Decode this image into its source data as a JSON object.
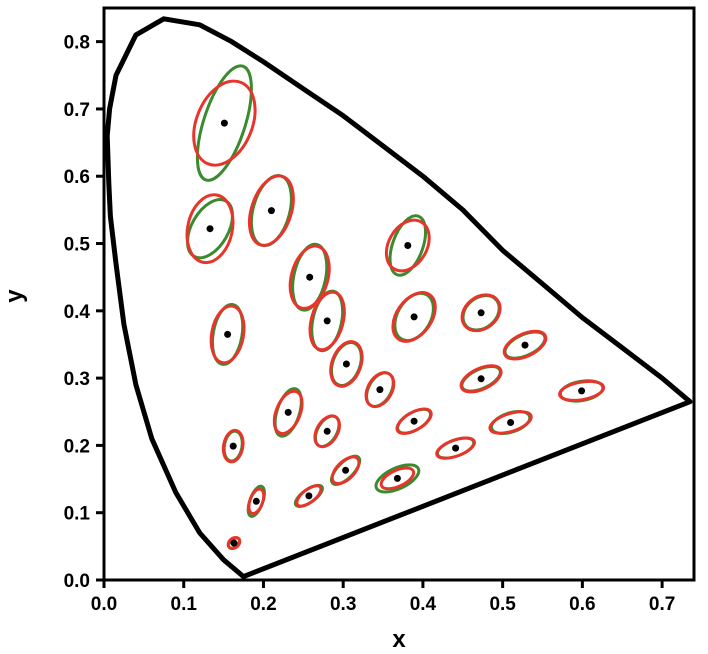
{
  "chart_data": {
    "type": "scatter",
    "title": "",
    "xlabel": "x",
    "ylabel": "y",
    "xlim": [
      0.0,
      0.74
    ],
    "ylim": [
      0.0,
      0.85
    ],
    "x_ticks": [
      "0.0",
      "0.1",
      "0.2",
      "0.3",
      "0.4",
      "0.5",
      "0.6",
      "0.7"
    ],
    "y_ticks": [
      "0.0",
      "0.1",
      "0.2",
      "0.3",
      "0.4",
      "0.5",
      "0.6",
      "0.7",
      "0.8"
    ],
    "grid": false,
    "legend": "none",
    "colors": {
      "locus": "#000000",
      "green_ellipse": "#3a8a2e",
      "red_ellipse": "#e8352b",
      "point": "#000000"
    },
    "spectral_locus": [
      [
        0.175,
        0.005
      ],
      [
        0.15,
        0.03
      ],
      [
        0.12,
        0.07
      ],
      [
        0.09,
        0.13
      ],
      [
        0.06,
        0.21
      ],
      [
        0.04,
        0.29
      ],
      [
        0.025,
        0.38
      ],
      [
        0.015,
        0.47
      ],
      [
        0.008,
        0.54
      ],
      [
        0.006,
        0.59
      ],
      [
        0.005,
        0.625
      ],
      [
        0.004,
        0.66
      ],
      [
        0.007,
        0.7
      ],
      [
        0.015,
        0.75
      ],
      [
        0.04,
        0.81
      ],
      [
        0.075,
        0.834
      ],
      [
        0.12,
        0.825
      ],
      [
        0.16,
        0.8
      ],
      [
        0.2,
        0.77
      ],
      [
        0.25,
        0.73
      ],
      [
        0.3,
        0.69
      ],
      [
        0.35,
        0.645
      ],
      [
        0.4,
        0.6
      ],
      [
        0.45,
        0.55
      ],
      [
        0.5,
        0.49
      ],
      [
        0.55,
        0.44
      ],
      [
        0.6,
        0.39
      ],
      [
        0.65,
        0.345
      ],
      [
        0.7,
        0.3
      ],
      [
        0.735,
        0.265
      ],
      [
        0.175,
        0.005
      ]
    ],
    "points": [
      {
        "x": 0.151,
        "y": 0.679,
        "green": {
          "a": 0.075,
          "b": 0.026,
          "angle": 72
        },
        "red": {
          "a": 0.055,
          "b": 0.035,
          "angle": 68
        }
      },
      {
        "x": 0.21,
        "y": 0.549,
        "green": {
          "a": 0.045,
          "b": 0.023,
          "angle": 75
        },
        "red": {
          "a": 0.045,
          "b": 0.025,
          "angle": 72
        }
      },
      {
        "x": 0.133,
        "y": 0.522,
        "green": {
          "a": 0.04,
          "b": 0.023,
          "angle": 60
        },
        "red": {
          "a": 0.043,
          "b": 0.028,
          "angle": 78
        }
      },
      {
        "x": 0.381,
        "y": 0.497,
        "green": {
          "a": 0.039,
          "b": 0.019,
          "angle": 70
        },
        "red": {
          "a": 0.034,
          "b": 0.024,
          "angle": 60
        }
      },
      {
        "x": 0.258,
        "y": 0.45,
        "green": {
          "a": 0.042,
          "b": 0.02,
          "angle": 78
        },
        "red": {
          "a": 0.04,
          "b": 0.023,
          "angle": 75
        }
      },
      {
        "x": 0.28,
        "y": 0.385,
        "green": {
          "a": 0.038,
          "b": 0.018,
          "angle": 78
        },
        "red": {
          "a": 0.037,
          "b": 0.02,
          "angle": 75
        }
      },
      {
        "x": 0.155,
        "y": 0.365,
        "green": {
          "a": 0.038,
          "b": 0.018,
          "angle": 80
        },
        "red": {
          "a": 0.036,
          "b": 0.02,
          "angle": 80
        }
      },
      {
        "x": 0.389,
        "y": 0.391,
        "green": {
          "a": 0.032,
          "b": 0.021,
          "angle": 60
        },
        "red": {
          "a": 0.034,
          "b": 0.022,
          "angle": 55
        }
      },
      {
        "x": 0.473,
        "y": 0.397,
        "green": {
          "a": 0.025,
          "b": 0.019,
          "angle": 40
        },
        "red": {
          "a": 0.026,
          "b": 0.02,
          "angle": 38
        }
      },
      {
        "x": 0.304,
        "y": 0.321,
        "green": {
          "a": 0.028,
          "b": 0.017,
          "angle": 70
        },
        "red": {
          "a": 0.029,
          "b": 0.018,
          "angle": 70
        }
      },
      {
        "x": 0.528,
        "y": 0.349,
        "green": {
          "a": 0.027,
          "b": 0.013,
          "angle": 25
        },
        "red": {
          "a": 0.028,
          "b": 0.014,
          "angle": 25
        }
      },
      {
        "x": 0.346,
        "y": 0.283,
        "green": {
          "a": 0.023,
          "b": 0.014,
          "angle": 60
        },
        "red": {
          "a": 0.023,
          "b": 0.015,
          "angle": 60
        }
      },
      {
        "x": 0.473,
        "y": 0.299,
        "green": {
          "a": 0.026,
          "b": 0.012,
          "angle": 25
        },
        "red": {
          "a": 0.027,
          "b": 0.013,
          "angle": 25
        }
      },
      {
        "x": 0.599,
        "y": 0.281,
        "green": {
          "a": 0.027,
          "b": 0.012,
          "angle": 10
        },
        "red": {
          "a": 0.028,
          "b": 0.011,
          "angle": 10
        }
      },
      {
        "x": 0.231,
        "y": 0.249,
        "green": {
          "a": 0.031,
          "b": 0.014,
          "angle": 72
        },
        "red": {
          "a": 0.028,
          "b": 0.015,
          "angle": 68
        }
      },
      {
        "x": 0.28,
        "y": 0.221,
        "green": {
          "a": 0.021,
          "b": 0.012,
          "angle": 60
        },
        "red": {
          "a": 0.021,
          "b": 0.013,
          "angle": 60
        }
      },
      {
        "x": 0.389,
        "y": 0.236,
        "green": {
          "a": 0.023,
          "b": 0.011,
          "angle": 30
        },
        "red": {
          "a": 0.024,
          "b": 0.011,
          "angle": 30
        }
      },
      {
        "x": 0.51,
        "y": 0.234,
        "green": {
          "a": 0.025,
          "b": 0.012,
          "angle": 18
        },
        "red": {
          "a": 0.027,
          "b": 0.011,
          "angle": 18
        }
      },
      {
        "x": 0.162,
        "y": 0.199,
        "green": {
          "a": 0.019,
          "b": 0.011,
          "angle": 80
        },
        "red": {
          "a": 0.02,
          "b": 0.012,
          "angle": 80
        }
      },
      {
        "x": 0.441,
        "y": 0.196,
        "green": {
          "a": 0.024,
          "b": 0.01,
          "angle": 20
        },
        "red": {
          "a": 0.025,
          "b": 0.01,
          "angle": 20
        }
      },
      {
        "x": 0.303,
        "y": 0.163,
        "green": {
          "a": 0.023,
          "b": 0.01,
          "angle": 45
        },
        "red": {
          "a": 0.021,
          "b": 0.011,
          "angle": 45
        }
      },
      {
        "x": 0.368,
        "y": 0.151,
        "green": {
          "a": 0.029,
          "b": 0.013,
          "angle": 25
        },
        "red": {
          "a": 0.022,
          "b": 0.01,
          "angle": 25
        }
      },
      {
        "x": 0.257,
        "y": 0.125,
        "green": {
          "a": 0.02,
          "b": 0.008,
          "angle": 35
        },
        "red": {
          "a": 0.018,
          "b": 0.008,
          "angle": 38
        }
      },
      {
        "x": 0.191,
        "y": 0.117,
        "green": {
          "a": 0.02,
          "b": 0.008,
          "angle": 70
        },
        "red": {
          "a": 0.016,
          "b": 0.008,
          "angle": 70
        }
      },
      {
        "x": 0.163,
        "y": 0.055,
        "green": {
          "a": 0.008,
          "b": 0.005,
          "angle": 40
        },
        "red": {
          "a": 0.008,
          "b": 0.006,
          "angle": 40
        }
      }
    ]
  }
}
